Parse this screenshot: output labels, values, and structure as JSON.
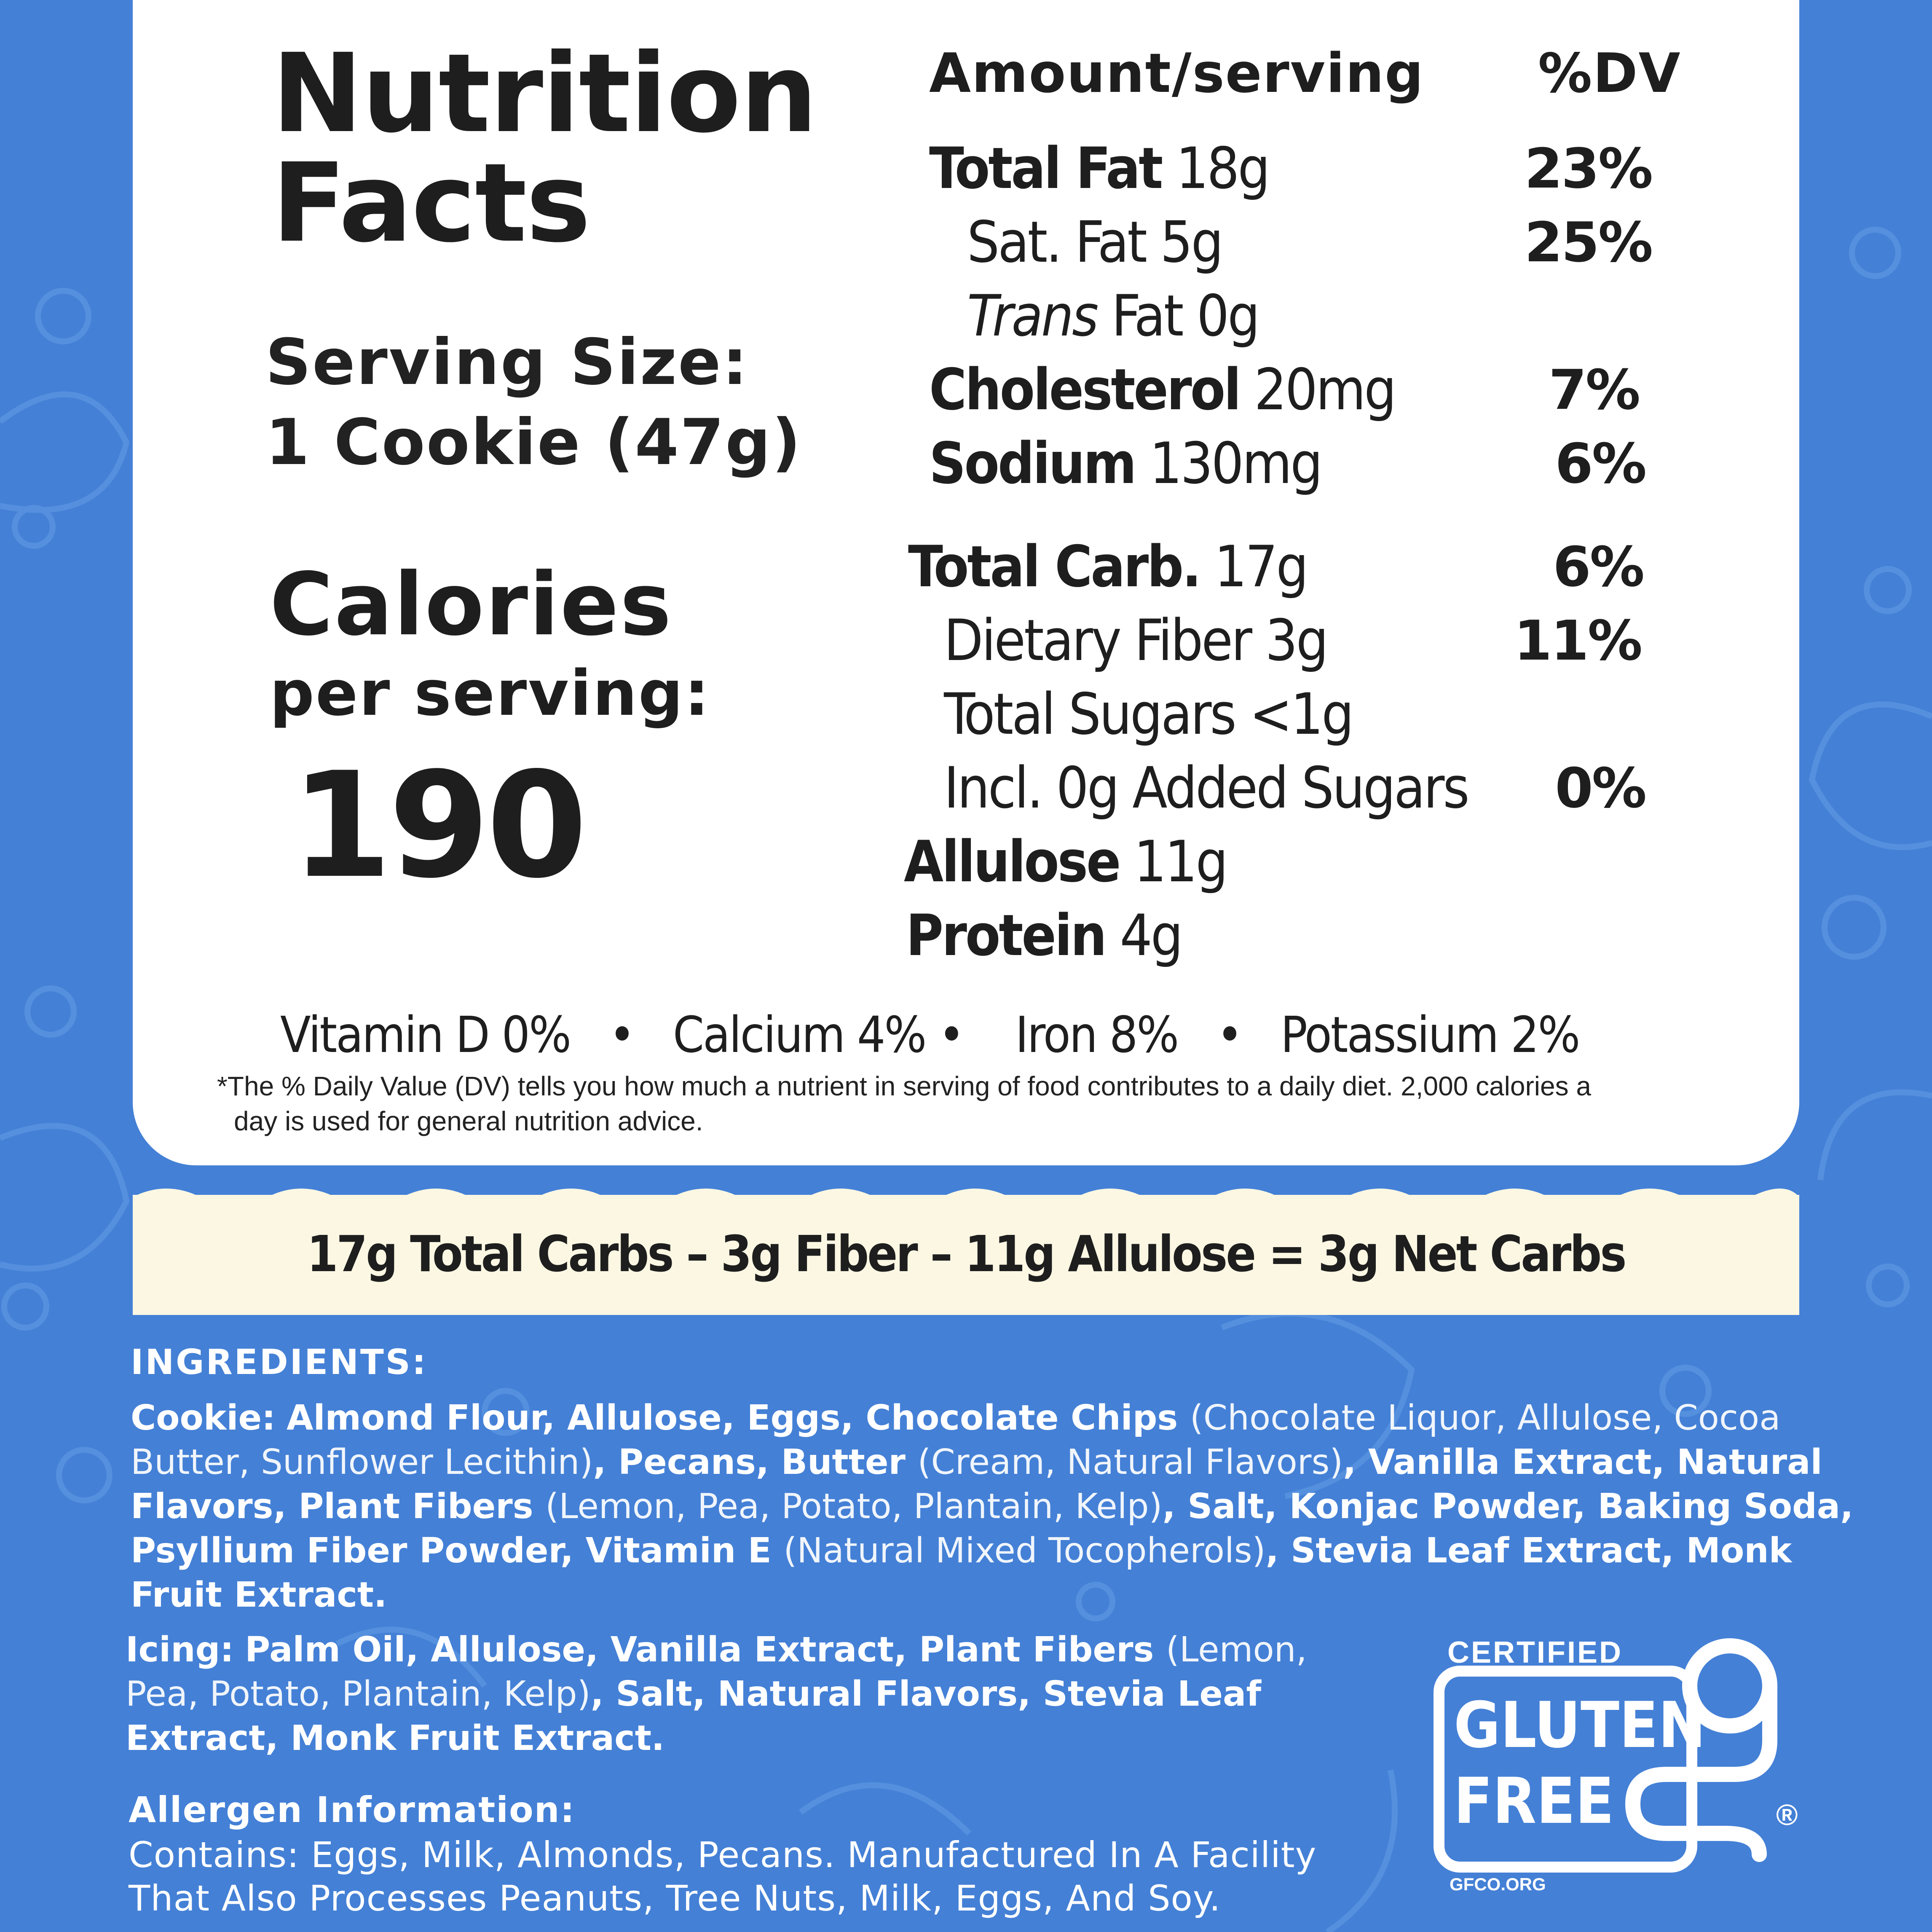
{
  "panel": {
    "title_line1": "Nutrition",
    "title_line2": "Facts",
    "serving_label": "Serving Size:",
    "serving_value": "1 Cookie (47g)",
    "calories_label": "Calories",
    "calories_sub": "per serving:",
    "calories_value": "190"
  },
  "table": {
    "header_amount": "Amount/serving",
    "header_dv": "%DV",
    "rows": [
      {
        "name": "Total Fat",
        "amount": "18g",
        "dv": "23%"
      },
      {
        "name": "Sat. Fat",
        "amount": "5g",
        "dv": "25%"
      },
      {
        "name_italic": "Trans",
        "name": "Fat",
        "amount": "0g",
        "dv": ""
      },
      {
        "name": "Cholesterol",
        "amount": "20mg",
        "dv": "7%"
      },
      {
        "name": "Sodium",
        "amount": "130mg",
        "dv": "6%"
      },
      {
        "name": "Total Carb.",
        "amount": "17g",
        "dv": "6%"
      },
      {
        "name": "Dietary Fiber",
        "amount": "3g",
        "dv": "11%"
      },
      {
        "name": "Total Sugars",
        "amount": "<1g",
        "dv": ""
      },
      {
        "name": "Incl. 0g Added Sugars",
        "amount": "",
        "dv": "0%"
      },
      {
        "name": "Allulose",
        "amount": "11g",
        "dv": ""
      },
      {
        "name": "Protein",
        "amount": "4g",
        "dv": ""
      }
    ]
  },
  "vitamins": {
    "vitamin_d": "Vitamin D 0%",
    "calcium": "Calcium 4%",
    "iron": "Iron 8%",
    "potassium": "Potassium 2%",
    "separator": "•"
  },
  "footnote": {
    "line1": "*The % Daily Value (DV) tells you how much a nutrient in serving of food contributes to a daily diet. 2,000 calories a",
    "line2": "day is used for general nutrition advice."
  },
  "net_carbs": "17g  Total Carbs  –  3g Fiber – 11g Allulose = 3g Net Carbs",
  "ingredients": {
    "heading": "INGREDIENTS:",
    "cookie_label": "Cookie:",
    "cookie_parts": [
      {
        "t": "Almond Flour, Allulose, Eggs, Chocolate Chips ",
        "b": true
      },
      {
        "t": "(Chocolate Liquor, Allulose, Cocoa Butter, Sunflower Lecithin)",
        "b": false
      },
      {
        "t": ", Pecans, Butter ",
        "b": true
      },
      {
        "t": "(Cream, Natural Flavors)",
        "b": false
      },
      {
        "t": ", Vanilla Extract, Natural Flavors, Plant Fibers ",
        "b": true
      },
      {
        "t": "(Lemon, Pea, Potato, Plantain, Kelp)",
        "b": false
      },
      {
        "t": ", Salt, Konjac Powder, Baking Soda, Psyllium Fiber Powder, Vitamin E ",
        "b": true
      },
      {
        "t": "(Natural Mixed Tocopherols)",
        "b": false
      },
      {
        "t": ", Stevia Leaf Extract, Monk Fruit Extract.",
        "b": true
      }
    ],
    "icing_label": "Icing:",
    "icing_parts": [
      {
        "t": "Palm Oil, Allulose, Vanilla Extract, Plant Fibers ",
        "b": true
      },
      {
        "t": "(Lemon, Pea, Potato, Plantain, Kelp)",
        "b": false
      },
      {
        "t": ", Salt, Natural Flavors, Stevia Leaf Extract, Monk Fruit Extract.",
        "b": true
      }
    ],
    "allergen_heading": "Allergen Information:",
    "allergen_line1": "Contains: Eggs, Milk, Almonds, Pecans. Manufactured In A Facility",
    "allergen_line2": "That Also Processes Peanuts, Tree Nuts, Milk, Eggs, And Soy."
  },
  "badge": {
    "certified": "CERTIFIED",
    "gluten": "GLUTEN",
    "free": "FREE",
    "registered": "®",
    "url": "GFCO.ORG"
  },
  "colors": {
    "background": "#4480d6",
    "panel": "#ffffff",
    "band": "#fbf7e3",
    "text_dark": "#1e1e1e"
  }
}
